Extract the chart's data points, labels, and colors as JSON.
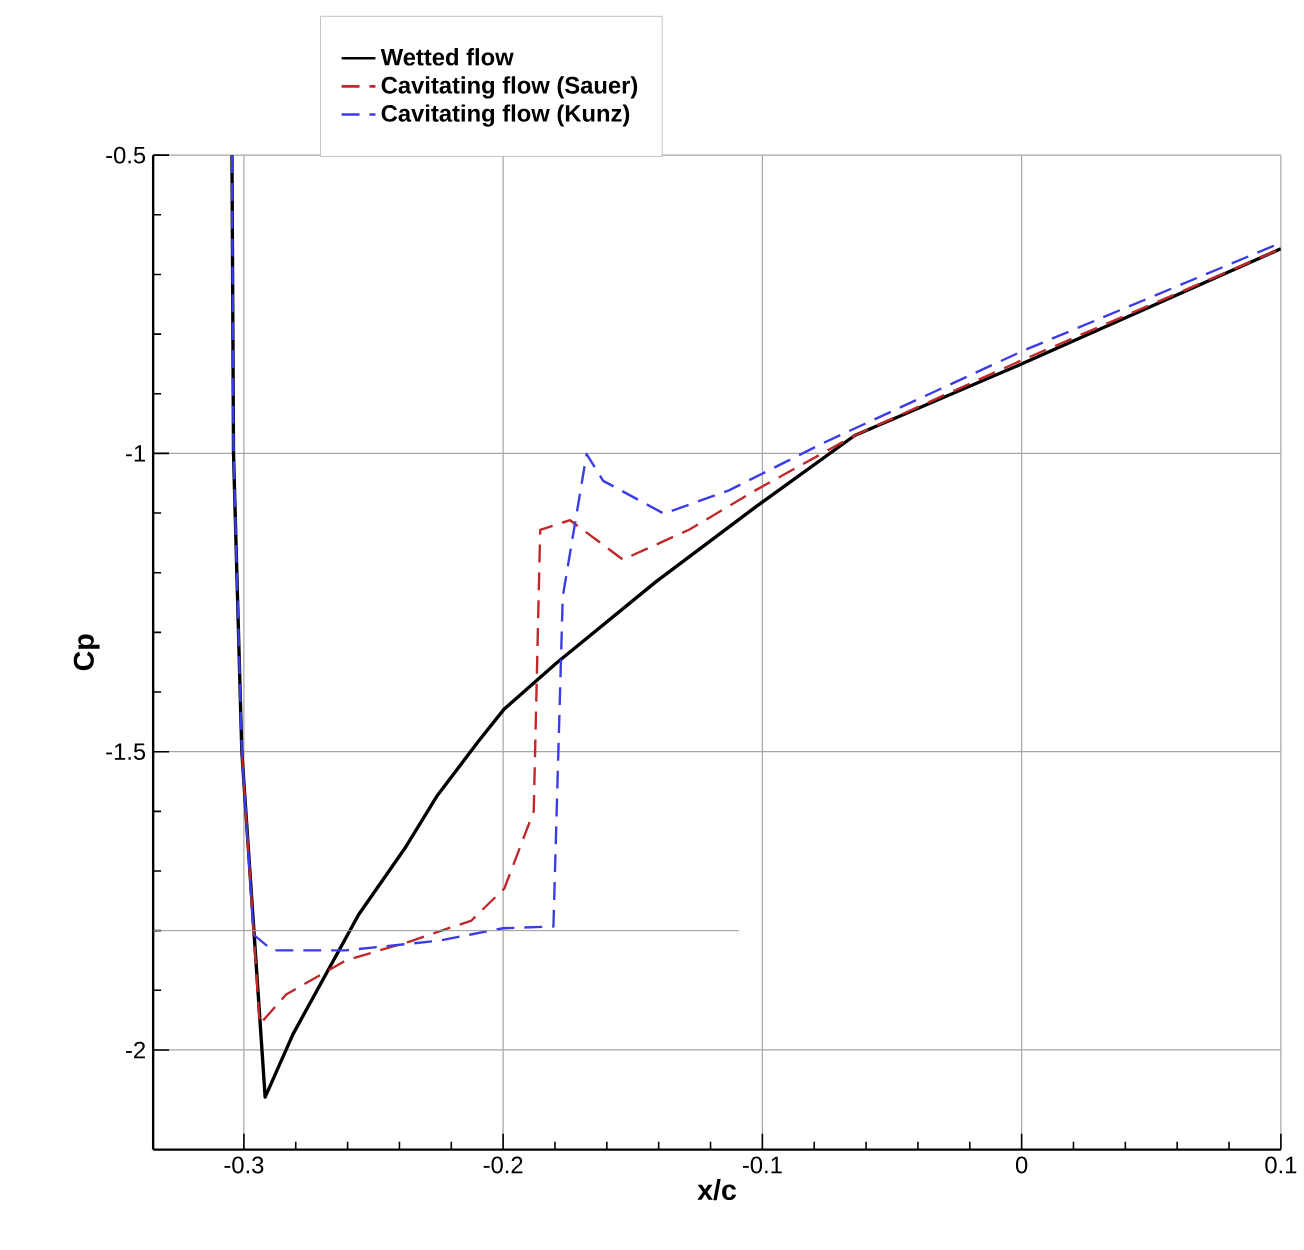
{
  "chart_data": {
    "type": "line",
    "xlabel": "x/c",
    "ylabel": "Cp",
    "xlim": [
      -0.335,
      0.1
    ],
    "ylim": [
      -2.167,
      -0.5
    ],
    "xticks": [
      -0.3,
      -0.2,
      -0.1,
      0,
      0.1
    ],
    "yticks": [
      -2,
      -1.5,
      -1,
      -0.5
    ],
    "grid": true,
    "legend": "top",
    "marker": "none",
    "series": [
      {
        "name": "Wetted flow",
        "color": "#000000",
        "line_style": "solid",
        "x": [
          -0.3046,
          -0.304,
          -0.3008,
          -0.2918,
          -0.281,
          -0.2557,
          -0.2379,
          -0.2253,
          -0.2096,
          -0.1997,
          -0.1793,
          -0.141,
          -0.1027,
          -0.0644,
          -0.0005,
          0.1
        ],
        "values": [
          -0.5,
          -1.0,
          -1.5,
          -2.079,
          -1.973,
          -1.773,
          -1.662,
          -1.573,
          -1.483,
          -1.429,
          -1.351,
          -1.215,
          -1.09,
          -0.97,
          -0.851,
          -0.657
        ]
      },
      {
        "name": "Cavitating flow (Sauer)",
        "color": "#c0282a",
        "line_style": "dashed",
        "x": [
          -0.3008,
          -0.2939,
          -0.2837,
          -0.2607,
          -0.2352,
          -0.2122,
          -0.1995,
          -0.1882,
          -0.1857,
          -0.1742,
          -0.1538,
          -0.1283,
          -0.1027,
          -0.0644,
          -0.0005,
          0.1
        ],
        "values": [
          -1.5,
          -1.957,
          -1.907,
          -1.85,
          -1.817,
          -1.783,
          -1.729,
          -1.6,
          -1.128,
          -1.112,
          -1.178,
          -1.128,
          -1.062,
          -0.97,
          -0.845,
          -0.657
        ]
      },
      {
        "name": "Cavitating flow (Kunz)",
        "color": "#3c3ce6",
        "line_style": "dashed",
        "x": [
          -0.3046,
          -0.304,
          -0.3008,
          -0.2962,
          -0.289,
          -0.2607,
          -0.2251,
          -0.2,
          -0.1806,
          -0.177,
          -0.1678,
          -0.1614,
          -0.138,
          -0.1129,
          -0.0772,
          0.0,
          0.1
        ],
        "values": [
          -0.5,
          -1.0,
          -1.5,
          -1.807,
          -1.833,
          -1.833,
          -1.817,
          -1.796,
          -1.793,
          -1.24,
          -1.001,
          -1.046,
          -1.101,
          -1.062,
          -0.984,
          -0.829,
          -0.647
        ]
      },
      {
        "color": "#999999",
        "line_style": "solid",
        "x": [
          -0.335,
          -0.109
        ],
        "values": [
          -1.8,
          -1.8
        ]
      }
    ]
  }
}
